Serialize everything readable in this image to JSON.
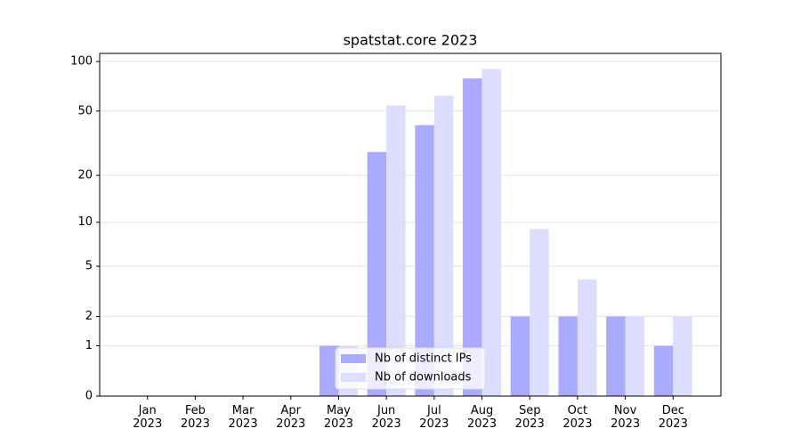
{
  "chart_data": {
    "type": "bar",
    "title": "spatstat.core 2023",
    "categories": [
      "Jan\n2023",
      "Feb\n2023",
      "Mar\n2023",
      "Apr\n2023",
      "May\n2023",
      "Jun\n2023",
      "Jul\n2023",
      "Aug\n2023",
      "Sep\n2023",
      "Oct\n2023",
      "Nov\n2023",
      "Dec\n2023"
    ],
    "series": [
      {
        "name": "Nb of distinct IPs",
        "color": "#aaaaff",
        "values": [
          0,
          0,
          0,
          0,
          1,
          28,
          41,
          79,
          2,
          2,
          2,
          1
        ]
      },
      {
        "name": "Nb of downloads",
        "color": "#ddddff",
        "values": [
          0,
          0,
          0,
          0,
          1,
          54,
          62,
          90,
          9,
          4,
          2,
          2
        ]
      }
    ],
    "yscale": "log1p",
    "ylim": [
      0,
      112
    ],
    "yticks": [
      0,
      1,
      2,
      5,
      10,
      20,
      50,
      100
    ],
    "grid": true,
    "legend": "lower center"
  }
}
